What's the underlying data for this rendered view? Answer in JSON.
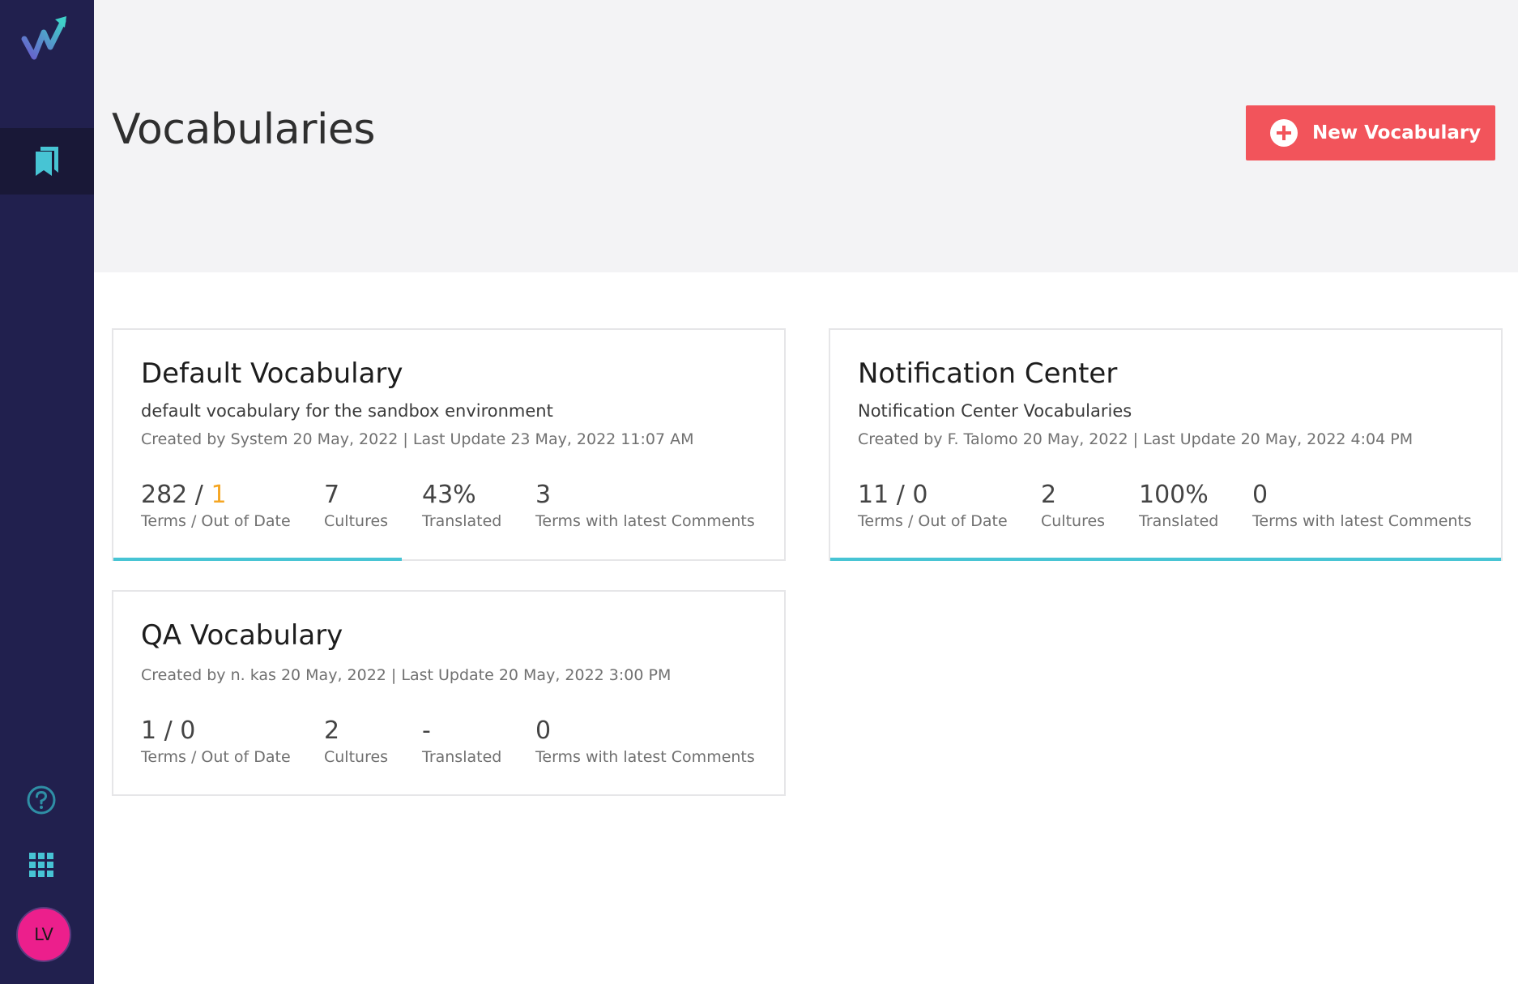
{
  "header": {
    "title": "Vocabularies",
    "new_button_label": "New Vocabulary"
  },
  "sidebar": {
    "logo": "logo-checkmark-arrow",
    "nav_items": [
      {
        "icon": "bookmarks-icon",
        "active": true
      }
    ],
    "bottom_icons": [
      "help-icon",
      "apps-grid-icon"
    ],
    "avatar_initials": "LV"
  },
  "colors": {
    "sidebar": "#21204e",
    "accent": "#47c4d4",
    "button": "#f2545b",
    "warning": "#f5a623",
    "avatar": "#ec1f8c"
  },
  "vocabularies": [
    {
      "name": "Default Vocabulary",
      "description": "default vocabulary for the sandbox environment",
      "meta": "Created by System 20 May, 2022 | Last Update 23 May, 2022 11:07 AM",
      "terms": "282 / ",
      "out_of_date": "1",
      "terms_label": "Terms / Out of Date",
      "cultures": "7",
      "cultures_label": "Cultures",
      "translated": "43%",
      "translated_label": "Translated",
      "comments": "3",
      "comments_label": "Terms with latest Comments",
      "progress": 0.43
    },
    {
      "name": "Notification Center",
      "description": "Notification Center Vocabularies",
      "meta": "Created by F. Talomo 20 May, 2022 | Last Update 20 May, 2022 4:04 PM",
      "terms": "11 / 0",
      "out_of_date": "",
      "terms_label": "Terms / Out of Date",
      "cultures": "2",
      "cultures_label": "Cultures",
      "translated": "100%",
      "translated_label": "Translated",
      "comments": "0",
      "comments_label": "Terms with latest Comments",
      "progress": 1.0
    },
    {
      "name": "QA Vocabulary",
      "description": "",
      "meta": "Created by n. kas 20 May, 2022 | Last Update 20 May, 2022 3:00 PM",
      "terms": "1 / 0",
      "out_of_date": "",
      "terms_label": "Terms / Out of Date",
      "cultures": "2",
      "cultures_label": "Cultures",
      "translated": "-",
      "translated_label": "Translated",
      "comments": "0",
      "comments_label": "Terms with latest Comments",
      "progress": 0
    }
  ]
}
